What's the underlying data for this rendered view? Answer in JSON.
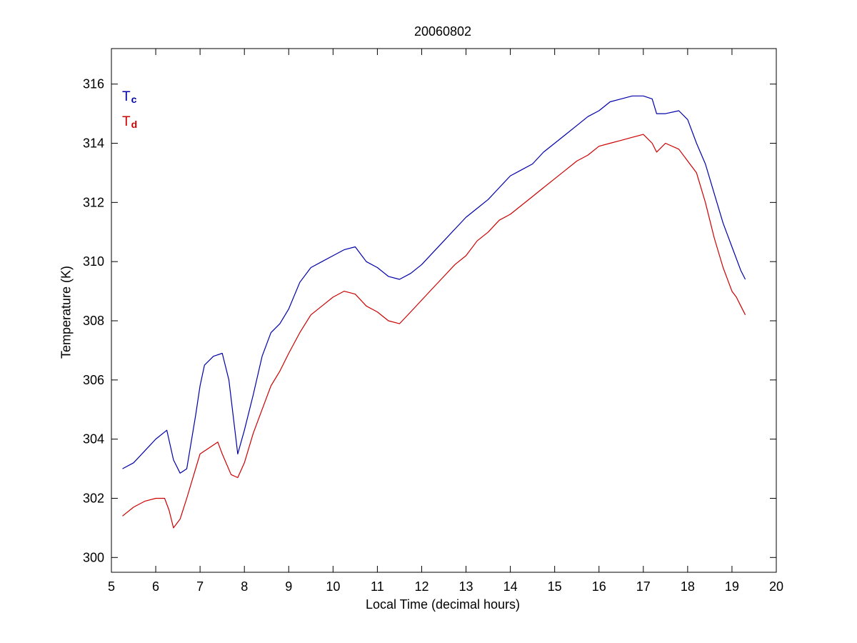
{
  "chart_data": {
    "type": "line",
    "title": "20060802",
    "xlabel": "Local Time (decimal hours)",
    "ylabel": "Temperature (K)",
    "xlim": [
      5,
      20
    ],
    "ylim": [
      299.5,
      317.2
    ],
    "xticks": [
      5,
      6,
      7,
      8,
      9,
      10,
      11,
      12,
      13,
      14,
      15,
      16,
      17,
      18,
      19,
      20
    ],
    "yticks": [
      300,
      302,
      304,
      306,
      308,
      310,
      312,
      314,
      316
    ],
    "grid": false,
    "legend_placement": "top-left",
    "series": [
      {
        "name": "T",
        "subscript": "c",
        "color": "#0000AA",
        "x": [
          5.25,
          5.5,
          5.75,
          6.0,
          6.25,
          6.4,
          6.55,
          6.7,
          6.9,
          7.0,
          7.1,
          7.3,
          7.5,
          7.65,
          7.85,
          8.0,
          8.2,
          8.4,
          8.6,
          8.8,
          9.0,
          9.25,
          9.5,
          9.75,
          10.0,
          10.25,
          10.5,
          10.75,
          11.0,
          11.25,
          11.5,
          11.75,
          12.0,
          12.25,
          12.5,
          12.75,
          13.0,
          13.25,
          13.5,
          13.75,
          14.0,
          14.25,
          14.5,
          14.75,
          15.0,
          15.25,
          15.5,
          15.75,
          16.0,
          16.25,
          16.5,
          16.75,
          17.0,
          17.2,
          17.3,
          17.5,
          17.8,
          18.0,
          18.2,
          18.4,
          18.6,
          18.8,
          19.0,
          19.2,
          19.3
        ],
        "y": [
          303.0,
          303.2,
          303.6,
          304.0,
          304.3,
          303.3,
          302.85,
          303.0,
          304.8,
          305.8,
          306.5,
          306.8,
          306.9,
          306.0,
          303.5,
          304.3,
          305.5,
          306.8,
          307.6,
          307.9,
          308.4,
          309.3,
          309.8,
          310.0,
          310.2,
          310.4,
          310.5,
          310.0,
          309.8,
          309.5,
          309.4,
          309.6,
          309.9,
          310.3,
          310.7,
          311.1,
          311.5,
          311.8,
          312.1,
          312.5,
          312.9,
          313.1,
          313.3,
          313.7,
          314.0,
          314.3,
          314.6,
          314.9,
          315.1,
          315.4,
          315.5,
          315.6,
          315.6,
          315.5,
          315.0,
          315.0,
          315.1,
          314.8,
          314.0,
          313.3,
          312.3,
          311.3,
          310.5,
          309.7,
          309.4
        ]
      },
      {
        "name": "T",
        "subscript": "d",
        "color": "#CC0000",
        "x": [
          5.25,
          5.5,
          5.75,
          6.0,
          6.2,
          6.3,
          6.4,
          6.55,
          6.7,
          6.9,
          7.0,
          7.2,
          7.4,
          7.5,
          7.7,
          7.85,
          8.0,
          8.2,
          8.4,
          8.6,
          8.8,
          9.0,
          9.25,
          9.5,
          9.75,
          10.0,
          10.25,
          10.5,
          10.75,
          11.0,
          11.25,
          11.5,
          11.75,
          12.0,
          12.25,
          12.5,
          12.75,
          13.0,
          13.25,
          13.5,
          13.75,
          14.0,
          14.25,
          14.5,
          14.75,
          15.0,
          15.25,
          15.5,
          15.75,
          16.0,
          16.25,
          16.5,
          16.75,
          17.0,
          17.2,
          17.3,
          17.5,
          17.8,
          18.0,
          18.2,
          18.4,
          18.6,
          18.8,
          19.0,
          19.1,
          19.2,
          19.3
        ],
        "y": [
          301.4,
          301.7,
          301.9,
          302.0,
          302.0,
          301.6,
          301.0,
          301.3,
          302.0,
          303.0,
          303.5,
          303.7,
          303.9,
          303.5,
          302.8,
          302.7,
          303.2,
          304.2,
          305.0,
          305.8,
          306.3,
          306.9,
          307.6,
          308.2,
          308.5,
          308.8,
          309.0,
          308.9,
          308.5,
          308.3,
          308.0,
          307.9,
          308.3,
          308.7,
          309.1,
          309.5,
          309.9,
          310.2,
          310.7,
          311.0,
          311.4,
          311.6,
          311.9,
          312.2,
          312.5,
          312.8,
          313.1,
          313.4,
          313.6,
          313.9,
          314.0,
          314.1,
          314.2,
          314.3,
          314.0,
          313.7,
          314.0,
          313.8,
          313.4,
          313.0,
          312.0,
          310.8,
          309.8,
          309.0,
          308.8,
          308.5,
          308.2
        ]
      }
    ]
  }
}
